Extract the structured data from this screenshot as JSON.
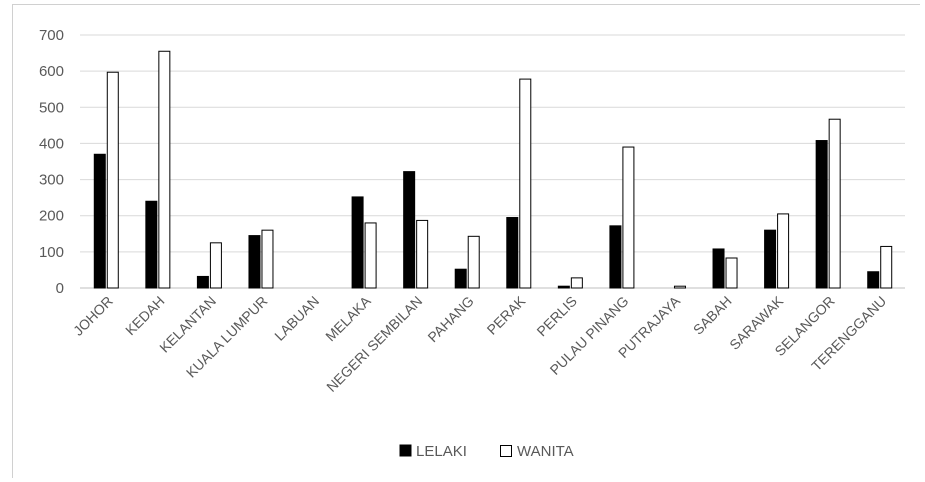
{
  "chart_data": {
    "type": "bar",
    "categories": [
      "JOHOR",
      "KEDAH",
      "KELANTAN",
      "KUALA LUMPUR",
      "LABUAN",
      "MELAKA",
      "NEGERI SEMBILAN",
      "PAHANG",
      "PERAK",
      "PERLIS",
      "PULAU PINANG",
      "PUTRAJAYA",
      "SABAH",
      "SARAWAK",
      "SELANGOR",
      "TERENGGANU"
    ],
    "series": [
      {
        "name": "LELAKI",
        "color": "#000000",
        "values": [
          370,
          240,
          32,
          145,
          0,
          252,
          322,
          52,
          195,
          5,
          172,
          0,
          108,
          160,
          408,
          45
        ]
      },
      {
        "name": "WANITA",
        "color": "#ffffff",
        "values": [
          597,
          655,
          125,
          160,
          0,
          180,
          187,
          143,
          578,
          28,
          390,
          5,
          83,
          205,
          467,
          115
        ]
      }
    ],
    "yticks": [
      "0",
      "100",
      "200",
      "300",
      "400",
      "500",
      "600",
      "700"
    ],
    "ylim": [
      0,
      700
    ],
    "grid": true,
    "legend_position": "bottom"
  }
}
